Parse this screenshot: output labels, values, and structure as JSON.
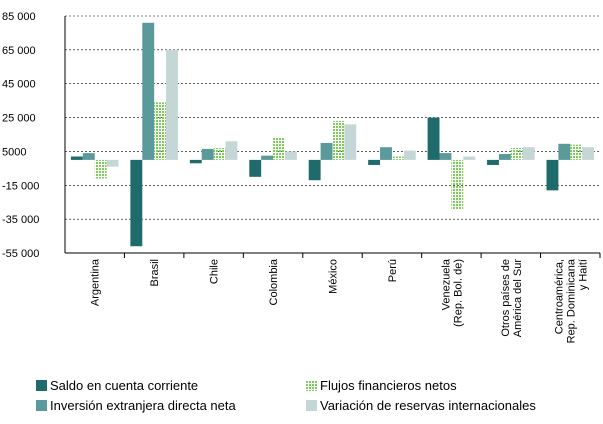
{
  "chart_data": {
    "type": "bar",
    "categories": [
      [
        "Argentina"
      ],
      [
        "Brasil"
      ],
      [
        "Chile"
      ],
      [
        "Colombia"
      ],
      [
        "México"
      ],
      [
        "Perú"
      ],
      [
        "Venezuela",
        "(Rep. Bol. de)"
      ],
      [
        "Otros países de",
        "América del Sur"
      ],
      [
        "Centroamérica,",
        "Rep. Dominicana",
        "y Haití"
      ]
    ],
    "series": [
      {
        "name": "Saldo en cuenta corriente",
        "color": "#1f6b6b",
        "values": [
          2000,
          -51000,
          -2000,
          -10000,
          -12000,
          -3000,
          25000,
          -3000,
          -18000
        ]
      },
      {
        "name": "Inversión extranjera directa neta",
        "color": "#5a9a9a",
        "values": [
          4000,
          81000,
          6500,
          2500,
          10000,
          7500,
          4000,
          3500,
          9500
        ]
      },
      {
        "name": "Flujos financieros netos",
        "color": "#7ccd5a",
        "pattern": "dotted",
        "values": [
          -11000,
          34000,
          7000,
          13000,
          23000,
          2000,
          -29000,
          7000,
          9000
        ]
      },
      {
        "name": "Variación de reservas internacionales",
        "color": "#c5d6d6",
        "values": [
          -4000,
          65000,
          11000,
          5000,
          21000,
          5500,
          2000,
          7500,
          7500
        ]
      }
    ],
    "ylim": [
      -55000,
      85000
    ],
    "yticks": [
      {
        "value": -55000,
        "label": "-55 000"
      },
      {
        "value": -35000,
        "label": "-35 000"
      },
      {
        "value": -15000,
        "label": "-15 000"
      },
      5000,
      {
        "value": 25000,
        "label": "25 000"
      },
      {
        "value": 45000,
        "label": "45 000"
      },
      {
        "value": 65000,
        "label": "65 000"
      },
      {
        "value": 85000,
        "label": "85 000"
      }
    ],
    "grid": true,
    "legend": "bottom"
  }
}
